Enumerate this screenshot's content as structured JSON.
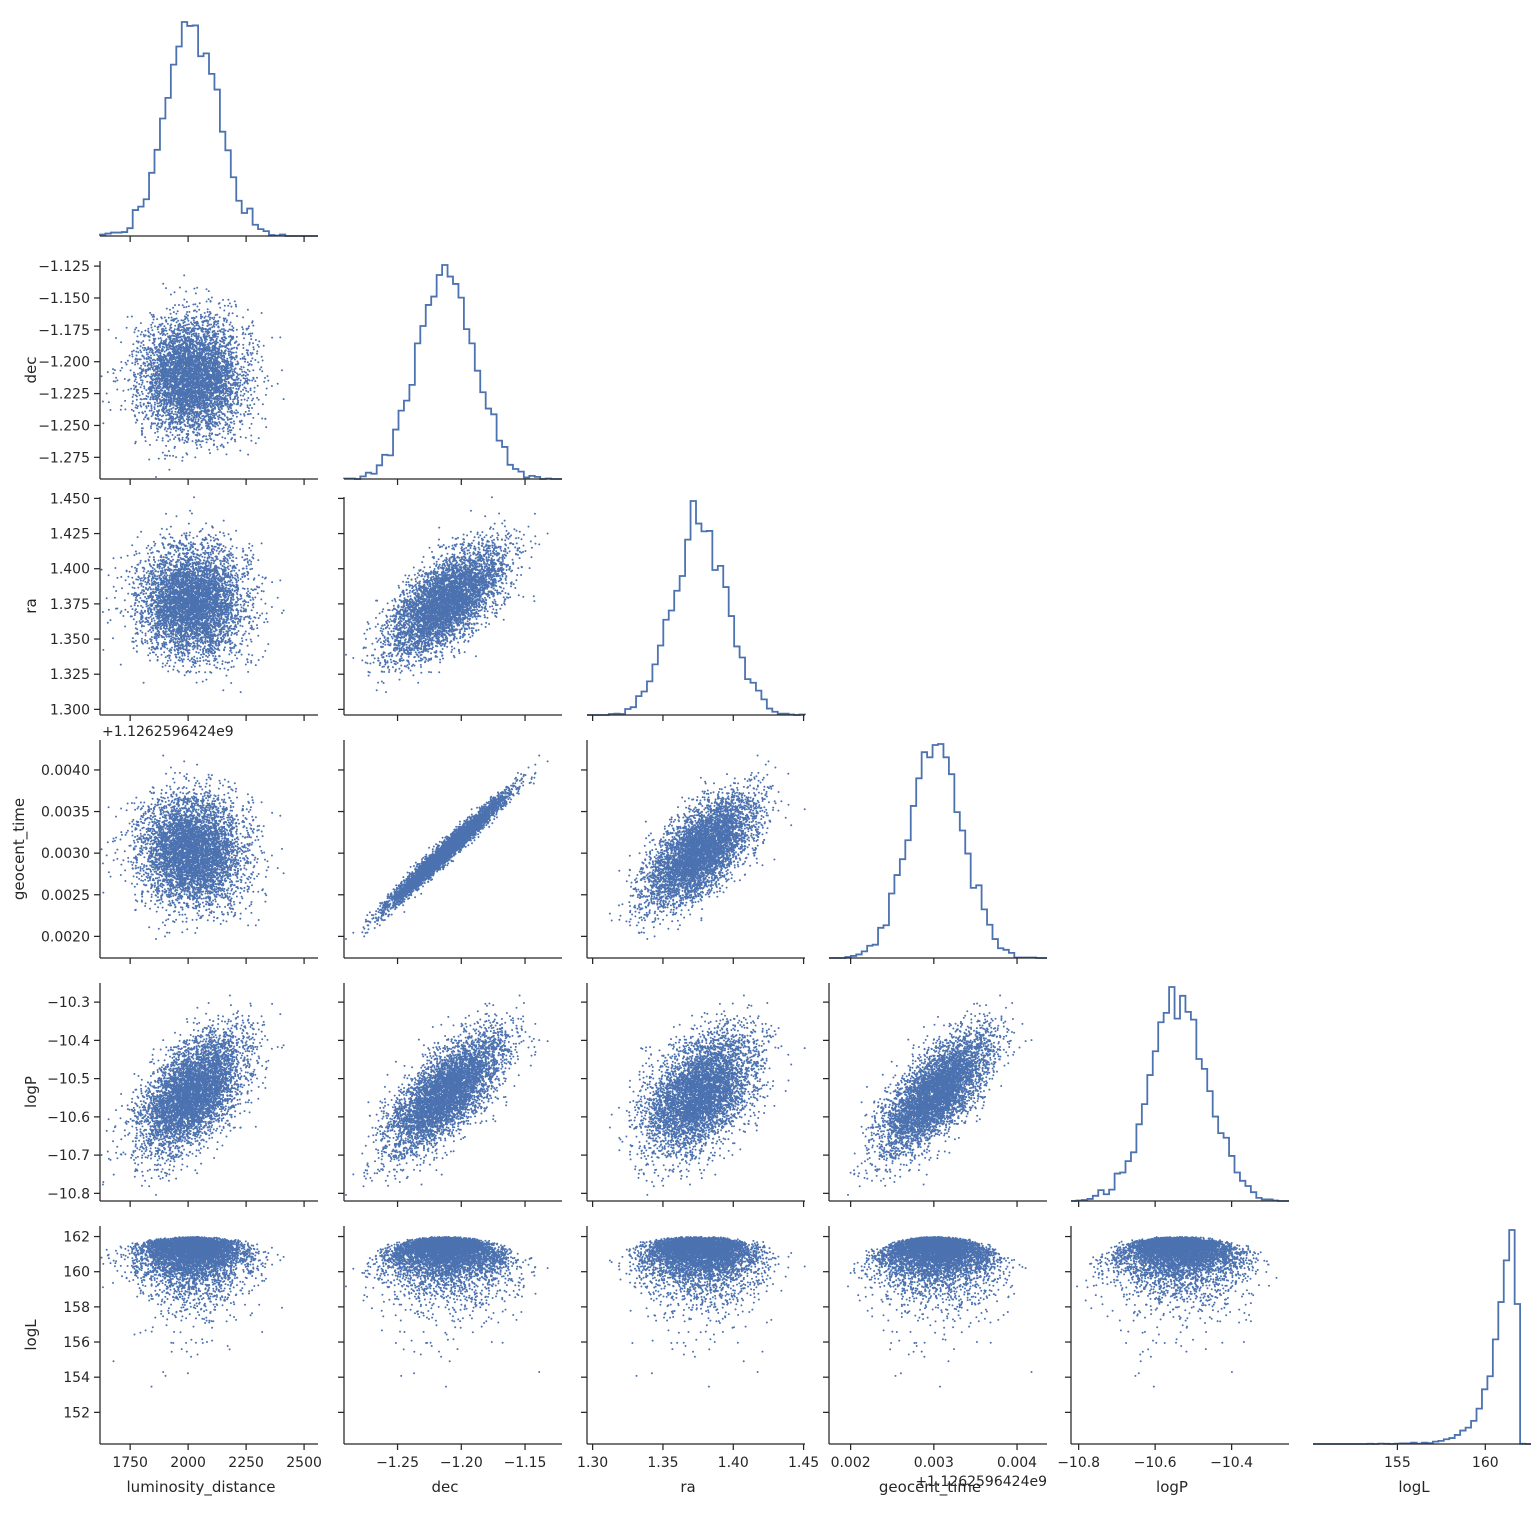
{
  "chart_data": {
    "type": "scatter",
    "variables": [
      "luminosity_distance",
      "dec",
      "ra",
      "geocent_time",
      "logP",
      "logL"
    ],
    "axes": [
      {
        "name": "luminosity_distance",
        "label": "luminosity_distance",
        "range": [
          1620,
          2560
        ],
        "ticks": [
          1750,
          2000,
          2250,
          2500
        ],
        "tick_labels": [
          "1750",
          "2000",
          "2250",
          "2500"
        ],
        "offset_text": "",
        "mean": 2015,
        "sd": 110
      },
      {
        "name": "dec",
        "label": "dec",
        "range": [
          -1.292,
          -1.121
        ],
        "ticks": [
          -1.125,
          -1.15,
          -1.175,
          -1.2,
          -1.225,
          -1.25,
          -1.275
        ],
        "tick_labels": [
          "−1.125",
          "−1.150",
          "−1.175",
          "−1.200",
          "−1.225",
          "−1.250",
          "−1.275"
        ],
        "x_ticks": [
          -1.25,
          -1.2,
          -1.15
        ],
        "x_tick_labels": [
          "−1.25",
          "−1.20",
          "−1.15"
        ],
        "offset_text": "",
        "mean": -1.212,
        "sd": 0.022
      },
      {
        "name": "ra",
        "label": "ra",
        "range": [
          1.296,
          1.451
        ],
        "ticks": [
          1.3,
          1.325,
          1.35,
          1.375,
          1.4,
          1.425,
          1.45
        ],
        "tick_labels": [
          "1.300",
          "1.325",
          "1.350",
          "1.375",
          "1.400",
          "1.425",
          "1.450"
        ],
        "x_ticks": [
          1.3,
          1.35,
          1.4,
          1.45
        ],
        "x_tick_labels": [
          "1.30",
          "1.35",
          "1.40",
          "1.45"
        ],
        "offset_text": "",
        "mean": 1.376,
        "sd": 0.019
      },
      {
        "name": "geocent_time",
        "label": "geocent_time",
        "range": [
          0.00174,
          0.00436
        ],
        "ticks": [
          0.002,
          0.0025,
          0.003,
          0.0035,
          0.004
        ],
        "tick_labels": [
          "0.0020",
          "0.0025",
          "0.0030",
          "0.0035",
          "0.0040"
        ],
        "x_ticks": [
          0.002,
          0.003,
          0.004
        ],
        "x_tick_labels": [
          "0.002",
          "0.003",
          "0.004"
        ],
        "offset_text": "+1.1262596424e9",
        "mean": 0.00302,
        "sd": 0.00032
      },
      {
        "name": "logP",
        "label": "logP",
        "range": [
          -10.82,
          -10.25
        ],
        "ticks": [
          -10.3,
          -10.4,
          -10.5,
          -10.6,
          -10.7,
          -10.8
        ],
        "tick_labels": [
          "−10.3",
          "−10.4",
          "−10.5",
          "−10.6",
          "−10.7",
          "−10.8"
        ],
        "x_ticks": [
          -10.8,
          -10.6,
          -10.4
        ],
        "x_tick_labels": [
          "−10.8",
          "−10.6",
          "−10.4"
        ],
        "offset_text": "",
        "mean": -10.54,
        "sd": 0.075
      },
      {
        "name": "logL",
        "label": "logL",
        "range": [
          150.2,
          162.6
        ],
        "ticks": [
          152,
          154,
          156,
          158,
          160,
          162
        ],
        "tick_labels": [
          "152",
          "154",
          "156",
          "158",
          "160",
          "162"
        ],
        "x_ticks": [
          155,
          160
        ],
        "x_tick_labels": [
          "155",
          "160"
        ],
        "offset_text": "",
        "max": 162.0
      }
    ],
    "correlations": [
      {
        "pair": [
          "dec",
          "ra"
        ],
        "r": 0.65
      },
      {
        "pair": [
          "dec",
          "geocent_time"
        ],
        "r": 0.98
      },
      {
        "pair": [
          "ra",
          "geocent_time"
        ],
        "r": 0.65
      },
      {
        "pair": [
          "luminosity_distance",
          "logP"
        ],
        "r": 0.55
      },
      {
        "pair": [
          "dec",
          "logP"
        ],
        "r": 0.7
      },
      {
        "pair": [
          "ra",
          "logP"
        ],
        "r": 0.45
      },
      {
        "pair": [
          "geocent_time",
          "logP"
        ],
        "r": 0.7
      },
      {
        "pair": [
          "luminosity_distance",
          "dec"
        ],
        "r": 0.0
      },
      {
        "pair": [
          "luminosity_distance",
          "ra"
        ],
        "r": 0.0
      },
      {
        "pair": [
          "luminosity_distance",
          "geocent_time"
        ],
        "r": -0.05
      }
    ],
    "diagonal": "step histogram",
    "lower_triangle": "scatter",
    "upper_triangle": "empty",
    "grid": false,
    "legend": "none",
    "colors": {
      "marker": "#4c72b0",
      "axis": "#262626",
      "background": "#ffffff"
    }
  }
}
